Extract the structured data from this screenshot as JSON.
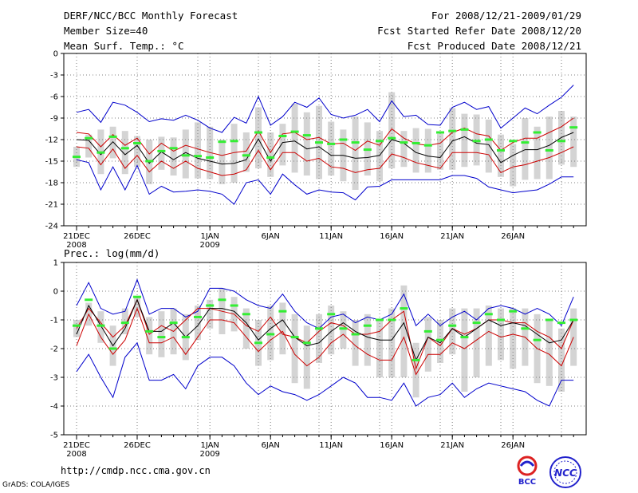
{
  "header": {
    "title": "DERF/NCC/BCC Monthly Forecast",
    "member_size": "Member Size=40",
    "range": "For 2008/12/21-2009/01/29",
    "started": "Fcst Started Refer Date 2008/12/20",
    "produced": "Fcst Produced Date 2008/12/21"
  },
  "footer": {
    "url": "http://cmdp.ncc.cma.gov.cn",
    "grads": "GrADS: COLA/IGES",
    "logo_bcc": "BCC",
    "logo_ncc": "NCC"
  },
  "colors": {
    "max_min": "#0000cc",
    "spread": "#cc0000",
    "mean": "#000000",
    "obs": "#33ee33",
    "box": "#d4d4d4",
    "grid": "#808080"
  },
  "chart_data": [
    {
      "type": "line",
      "title": "Mean Surf. Temp.: °C",
      "ylim": [
        -24,
        0
      ],
      "yticks": [
        "0",
        "-3",
        "-6",
        "-9",
        "-12",
        "-15",
        "-18",
        "-21",
        "-24"
      ],
      "x_tick_labels": [
        "21DEC",
        "26DEC",
        "1JAN",
        "6JAN",
        "11JAN",
        "16JAN",
        "21JAN",
        "26JAN"
      ],
      "x_tick_days": [
        0,
        5,
        11,
        16,
        21,
        26,
        31,
        36
      ],
      "sub_labels": [
        {
          "day": 0,
          "text": "2008"
        },
        {
          "day": 11,
          "text": "2009"
        }
      ],
      "series": [
        {
          "name": "max",
          "color": "#0000cc",
          "values": [
            -8.2,
            -7.8,
            -9.6,
            -6.8,
            -7.2,
            -8.2,
            -9.5,
            -9.1,
            -9.3,
            -8.6,
            -9.3,
            -10.4,
            -11.0,
            -8.9,
            -9.7,
            -6.0,
            -10.0,
            -8.8,
            -6.8,
            -7.5,
            -6.2,
            -8.5,
            -9.0,
            -8.6,
            -7.8,
            -9.5,
            -6.6,
            -8.8,
            -8.6,
            -9.9,
            -10.0,
            -7.5,
            -6.8,
            -7.8,
            -7.4,
            -10.4,
            -9.0,
            -7.6,
            -8.4,
            -7.2,
            -6.1,
            -4.4
          ]
        },
        {
          "name": "upper",
          "color": "#cc0000",
          "values": [
            -11.0,
            -11.2,
            -13.0,
            -11.3,
            -12.8,
            -11.8,
            -14.0,
            -12.5,
            -13.6,
            -12.8,
            -13.3,
            -13.8,
            -14.2,
            -13.8,
            -13.6,
            -10.8,
            -13.8,
            -11.2,
            -11.0,
            -12.0,
            -11.7,
            -12.6,
            -12.5,
            -13.5,
            -12.2,
            -12.8,
            -10.5,
            -11.8,
            -12.6,
            -12.8,
            -12.5,
            -11.0,
            -10.4,
            -11.2,
            -11.5,
            -13.5,
            -12.4,
            -11.8,
            -11.8,
            -11.0,
            -10.2,
            -9.0
          ]
        },
        {
          "name": "mean",
          "color": "#000000",
          "values": [
            -12.0,
            -12.1,
            -14.1,
            -12.3,
            -14.1,
            -12.8,
            -15.3,
            -13.7,
            -14.8,
            -13.8,
            -14.6,
            -15.0,
            -15.4,
            -15.3,
            -14.8,
            -11.9,
            -15.0,
            -12.4,
            -12.2,
            -13.3,
            -13.0,
            -14.2,
            -14.2,
            -14.6,
            -14.5,
            -14.2,
            -12.0,
            -12.5,
            -13.8,
            -14.3,
            -14.5,
            -12.2,
            -11.6,
            -12.5,
            -12.7,
            -15.2,
            -14.2,
            -13.4,
            -13.4,
            -12.8,
            -11.7,
            -11.0
          ]
        },
        {
          "name": "lower",
          "color": "#cc0000",
          "values": [
            -13.0,
            -13.2,
            -15.5,
            -13.3,
            -16.0,
            -14.2,
            -16.5,
            -15.0,
            -16.0,
            -15.0,
            -16.0,
            -16.5,
            -17.0,
            -16.8,
            -16.2,
            -13.5,
            -16.2,
            -13.8,
            -13.8,
            -15.0,
            -14.6,
            -15.8,
            -16.0,
            -16.6,
            -16.2,
            -16.0,
            -14.0,
            -14.5,
            -15.2,
            -15.6,
            -16.0,
            -13.8,
            -13.8,
            -13.8,
            -14.1,
            -16.6,
            -15.8,
            -15.5,
            -15.0,
            -14.5,
            -13.8,
            -13.0
          ]
        },
        {
          "name": "min",
          "color": "#0000cc",
          "values": [
            -14.8,
            -15.2,
            -19.0,
            -15.8,
            -19.0,
            -15.6,
            -19.6,
            -18.5,
            -19.3,
            -19.2,
            -19.0,
            -19.2,
            -19.6,
            -21.0,
            -18.0,
            -17.6,
            -19.6,
            -16.8,
            -18.3,
            -19.6,
            -19.0,
            -19.3,
            -19.4,
            -20.4,
            -18.6,
            -18.5,
            -17.6,
            -17.6,
            -17.6,
            -17.6,
            -17.6,
            -17.0,
            -17.0,
            -17.4,
            -18.6,
            -19.0,
            -19.4,
            -19.2,
            -19.0,
            -18.2,
            -17.2,
            -17.2
          ]
        }
      ],
      "obs": [
        -14.4,
        -11.8,
        -13.8,
        -11.6,
        -13.2,
        -12.5,
        -15.0,
        -13.6,
        -13.2,
        -14.2,
        -14.3,
        -14.5,
        -12.3,
        -12.2,
        -14.2,
        -11.0,
        -14.5,
        -11.5,
        -10.9,
        -11.4,
        -12.4,
        -12.6,
        -12.0,
        -12.4,
        -13.4,
        -12.2,
        -11.8,
        -12.4,
        -12.5,
        -12.8,
        -11.0,
        -10.8,
        -10.6,
        -12.2,
        -12.0,
        -13.5,
        -12.2,
        -12.4,
        -11.0,
        -13.5,
        -12.2,
        -10.3
      ],
      "box_low": [
        -15.8,
        -14.5,
        -16.8,
        -14.6,
        -16.8,
        -15.8,
        -18.2,
        -16.2,
        -17.0,
        -17.4,
        -17.4,
        -17.5,
        -18.2,
        -18.0,
        -16.5,
        -16.0,
        -17.2,
        -15.6,
        -16.6,
        -17.0,
        -17.5,
        -17.0,
        -17.8,
        -19.0,
        -17.0,
        -17.8,
        -16.0,
        -15.8,
        -16.6,
        -16.6,
        -16.2,
        -16.2,
        -15.8,
        -15.6,
        -16.6,
        -17.2,
        -18.5,
        -17.6,
        -17.5,
        -17.5,
        -15.5,
        -15.8
      ],
      "box_high": [
        -13.0,
        -11.3,
        -10.6,
        -10.2,
        -10.8,
        -11.5,
        -12.0,
        -11.6,
        -11.7,
        -10.6,
        -9.6,
        -10.2,
        -12.0,
        -9.8,
        -11.0,
        -7.5,
        -11.0,
        -9.8,
        -7.0,
        -8.2,
        -7.3,
        -9.5,
        -10.6,
        -8.8,
        -9.6,
        -10.8,
        -5.4,
        -10.8,
        -10.4,
        -10.5,
        -11.2,
        -7.6,
        -8.4,
        -8.5,
        -9.2,
        -11.3,
        -12.6,
        -9.0,
        -10.2,
        -8.8,
        -8.0,
        -8.8
      ]
    },
    {
      "type": "line",
      "title": "Prec.: log(mm/d)",
      "ylim": [
        -5,
        1
      ],
      "yticks": [
        "1",
        "0",
        "-1",
        "-2",
        "-3",
        "-4",
        "-5"
      ],
      "x_tick_labels": [
        "21DEC",
        "26DEC",
        "1JAN",
        "6JAN",
        "11JAN",
        "16JAN",
        "21JAN",
        "26JAN"
      ],
      "x_tick_days": [
        0,
        5,
        11,
        16,
        21,
        26,
        31,
        36
      ],
      "sub_labels": [
        {
          "day": 0,
          "text": "2008"
        },
        {
          "day": 11,
          "text": "2009"
        }
      ],
      "series": [
        {
          "name": "max",
          "color": "#0000cc",
          "values": [
            -0.5,
            0.3,
            -0.6,
            -0.8,
            -0.7,
            0.4,
            -0.8,
            -0.6,
            -0.6,
            -0.9,
            -0.7,
            0.1,
            0.1,
            0.0,
            -0.3,
            -0.5,
            -0.6,
            -0.1,
            -0.7,
            -1.1,
            -1.3,
            -0.9,
            -0.8,
            -1.1,
            -0.9,
            -1.0,
            -0.8,
            -0.1,
            -1.2,
            -0.8,
            -1.2,
            -0.9,
            -0.7,
            -1.0,
            -0.6,
            -0.5,
            -0.6,
            -0.8,
            -0.6,
            -0.8,
            -1.2,
            -0.2
          ]
        },
        {
          "name": "upper",
          "color": "#cc0000",
          "values": [
            -1.3,
            -0.6,
            -1.1,
            -1.6,
            -1.2,
            -0.3,
            -1.5,
            -1.2,
            -1.4,
            -1.0,
            -0.6,
            -0.6,
            -0.7,
            -0.8,
            -1.2,
            -1.4,
            -0.9,
            -1.5,
            -1.6,
            -1.8,
            -1.4,
            -1.1,
            -1.2,
            -1.5,
            -1.5,
            -1.4,
            -1.0,
            -0.7,
            -2.7,
            -1.6,
            -1.9,
            -1.3,
            -1.5,
            -1.3,
            -1.0,
            -1.0,
            -1.1,
            -1.1,
            -1.4,
            -1.6,
            -2.0,
            -1.0
          ]
        },
        {
          "name": "mean",
          "color": "#000000",
          "values": [
            -1.5,
            -0.5,
            -1.2,
            -1.9,
            -1.3,
            -0.3,
            -1.4,
            -1.4,
            -1.1,
            -1.6,
            -1.2,
            -0.6,
            -0.6,
            -0.7,
            -1.1,
            -1.7,
            -1.3,
            -1.0,
            -1.6,
            -1.9,
            -1.8,
            -1.4,
            -1.1,
            -1.4,
            -1.6,
            -1.7,
            -1.7,
            -1.1,
            -2.4,
            -1.6,
            -1.8,
            -1.3,
            -1.6,
            -1.3,
            -1.0,
            -1.2,
            -1.1,
            -1.2,
            -1.5,
            -1.8,
            -1.7,
            -1.0
          ]
        },
        {
          "name": "lower",
          "color": "#cc0000",
          "values": [
            -1.9,
            -0.8,
            -1.6,
            -2.2,
            -1.7,
            -0.6,
            -1.8,
            -1.8,
            -1.6,
            -2.2,
            -1.6,
            -1.0,
            -1.0,
            -1.1,
            -1.6,
            -2.1,
            -1.7,
            -1.4,
            -2.2,
            -2.6,
            -2.3,
            -1.8,
            -1.5,
            -1.9,
            -2.2,
            -2.4,
            -2.4,
            -1.6,
            -2.9,
            -2.2,
            -2.2,
            -1.8,
            -2.0,
            -1.7,
            -1.4,
            -1.6,
            -1.5,
            -1.6,
            -2.0,
            -2.2,
            -2.6,
            -1.6
          ]
        },
        {
          "name": "min",
          "color": "#0000cc",
          "values": [
            -2.8,
            -2.2,
            -3.0,
            -3.7,
            -2.3,
            -1.8,
            -3.1,
            -3.1,
            -2.9,
            -3.4,
            -2.6,
            -2.3,
            -2.3,
            -2.6,
            -3.2,
            -3.6,
            -3.3,
            -3.5,
            -3.6,
            -3.8,
            -3.6,
            -3.3,
            -3.0,
            -3.2,
            -3.7,
            -3.7,
            -3.8,
            -3.2,
            -4.0,
            -3.7,
            -3.6,
            -3.2,
            -3.7,
            -3.4,
            -3.2,
            -3.3,
            -3.4,
            -3.5,
            -3.8,
            -4.0,
            -3.1,
            -3.1
          ]
        }
      ],
      "obs": [
        -1.2,
        -0.3,
        -1.2,
        -2.0,
        -1.1,
        -0.2,
        -1.4,
        -1.6,
        -1.1,
        -1.6,
        -0.9,
        -0.5,
        -0.3,
        -0.5,
        -0.8,
        -1.8,
        -1.5,
        -0.7,
        -1.6,
        -1.8,
        -1.3,
        -0.8,
        -1.3,
        -1.5,
        -1.2,
        -1.0,
        -1.0,
        -0.6,
        -2.4,
        -1.4,
        -1.7,
        -1.2,
        -1.6,
        -1.1,
        -0.8,
        -1.0,
        -0.7,
        -1.3,
        -1.7,
        -1.0,
        -1.1,
        -1.0
      ],
      "box_low": [
        -1.6,
        -1.2,
        -1.8,
        -2.6,
        -1.5,
        -0.9,
        -2.2,
        -2.3,
        -2.2,
        -2.4,
        -1.7,
        -1.3,
        -1.5,
        -1.4,
        -2.0,
        -2.6,
        -2.4,
        -2.2,
        -3.2,
        -3.4,
        -2.5,
        -2.2,
        -2.0,
        -2.6,
        -2.6,
        -3.0,
        -3.0,
        -3.0,
        -3.7,
        -2.8,
        -2.5,
        -2.2,
        -3.5,
        -3.0,
        -2.6,
        -2.4,
        -2.7,
        -2.6,
        -3.2,
        -3.3,
        -3.5,
        -2.6
      ],
      "box_high": [
        -1.0,
        -0.4,
        -0.7,
        -1.2,
        -0.6,
        -0.2,
        -0.9,
        -0.7,
        -0.6,
        -0.8,
        -0.5,
        -0.3,
        0.1,
        -0.2,
        -0.6,
        -1.0,
        -0.5,
        -0.4,
        -0.8,
        -1.2,
        -0.8,
        -0.5,
        -0.7,
        -1.0,
        -0.8,
        -1.0,
        -0.6,
        0.2,
        -1.8,
        -0.9,
        -1.0,
        -0.6,
        -0.6,
        -0.6,
        -0.5,
        -0.6,
        -0.6,
        -0.6,
        -0.8,
        -1.0,
        -1.3,
        -0.6
      ]
    }
  ]
}
